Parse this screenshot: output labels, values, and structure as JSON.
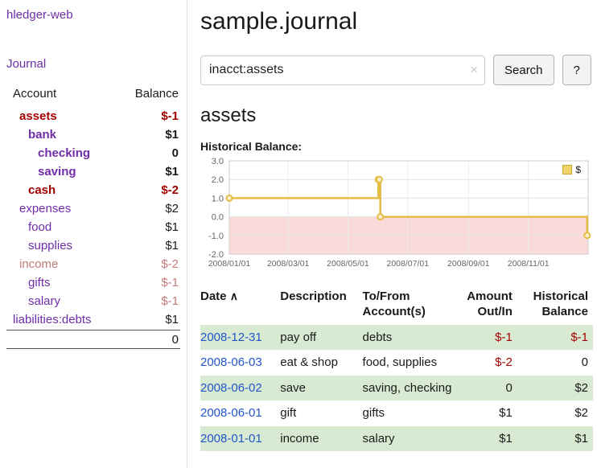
{
  "colors": {
    "accent-purple": "#6f2da8",
    "negative-red": "#a40000",
    "muted-pink": "#c47a7a",
    "link-blue": "#2255cc",
    "row-green": "#d9ead3",
    "chart-gold": "#e5bd45",
    "chart-fill-pink": "#fbdada"
  },
  "sidebar": {
    "app_title": "hledger-web",
    "journal_link": "Journal",
    "headers": {
      "account": "Account",
      "balance": "Balance"
    },
    "accounts": [
      {
        "name": "assets",
        "balance": "$-1"
      },
      {
        "name": "bank",
        "balance": "$1"
      },
      {
        "name": "checking",
        "balance": "0"
      },
      {
        "name": "saving",
        "balance": "$1"
      },
      {
        "name": "cash",
        "balance": "$-2"
      },
      {
        "name": "expenses",
        "balance": "$2"
      },
      {
        "name": "food",
        "balance": "$1"
      },
      {
        "name": "supplies",
        "balance": "$1"
      },
      {
        "name": "income",
        "balance": "$-2"
      },
      {
        "name": "gifts",
        "balance": "$-1"
      },
      {
        "name": "salary",
        "balance": "$-1"
      },
      {
        "name": "liabilities:debts",
        "balance": "$1"
      }
    ],
    "total": "0"
  },
  "header": {
    "title": "sample.journal"
  },
  "search": {
    "value": "inacct:assets",
    "clear_icon": "×",
    "button_label": "Search",
    "help_label": "?"
  },
  "account_page": {
    "title": "assets",
    "chart_label": "Historical Balance:"
  },
  "chart_data": {
    "type": "line",
    "title": "Historical Balance",
    "legend": [
      "$"
    ],
    "step": true,
    "ylim": [
      -2,
      3
    ],
    "xlim": [
      "2008-01-01",
      "2009-01-01"
    ],
    "y_ticks": [
      3.0,
      2.0,
      1.0,
      0.0,
      -1.0,
      -2.0
    ],
    "x_ticks": [
      "2008/01/01",
      "2008/03/01",
      "2008/05/01",
      "2008/07/01",
      "2008/09/01",
      "2008/11/01"
    ],
    "negative_region_below": 0,
    "series": [
      {
        "name": "$",
        "points": [
          [
            "2008-01-01",
            1
          ],
          [
            "2008-06-01",
            2
          ],
          [
            "2008-06-02",
            2
          ],
          [
            "2008-06-03",
            0
          ],
          [
            "2008-12-31",
            -1
          ]
        ]
      }
    ]
  },
  "register": {
    "headers": {
      "date": "Date",
      "description": "Description",
      "account": "To/From Account(s)",
      "amount": "Amount Out/In",
      "balance": "Historical Balance"
    },
    "sort_icon": "∧",
    "rows": [
      {
        "date": "2008-12-31",
        "description": "pay off",
        "account": "debts",
        "amount": "$-1",
        "balance": "$-1"
      },
      {
        "date": "2008-06-03",
        "description": "eat & shop",
        "account": "food, supplies",
        "amount": "$-2",
        "balance": "0"
      },
      {
        "date": "2008-06-02",
        "description": "save",
        "account": "saving, checking",
        "amount": "0",
        "balance": "$2"
      },
      {
        "date": "2008-06-01",
        "description": "gift",
        "account": "gifts",
        "amount": "$1",
        "balance": "$2"
      },
      {
        "date": "2008-01-01",
        "description": "income",
        "account": "salary",
        "amount": "$1",
        "balance": "$1"
      }
    ]
  }
}
